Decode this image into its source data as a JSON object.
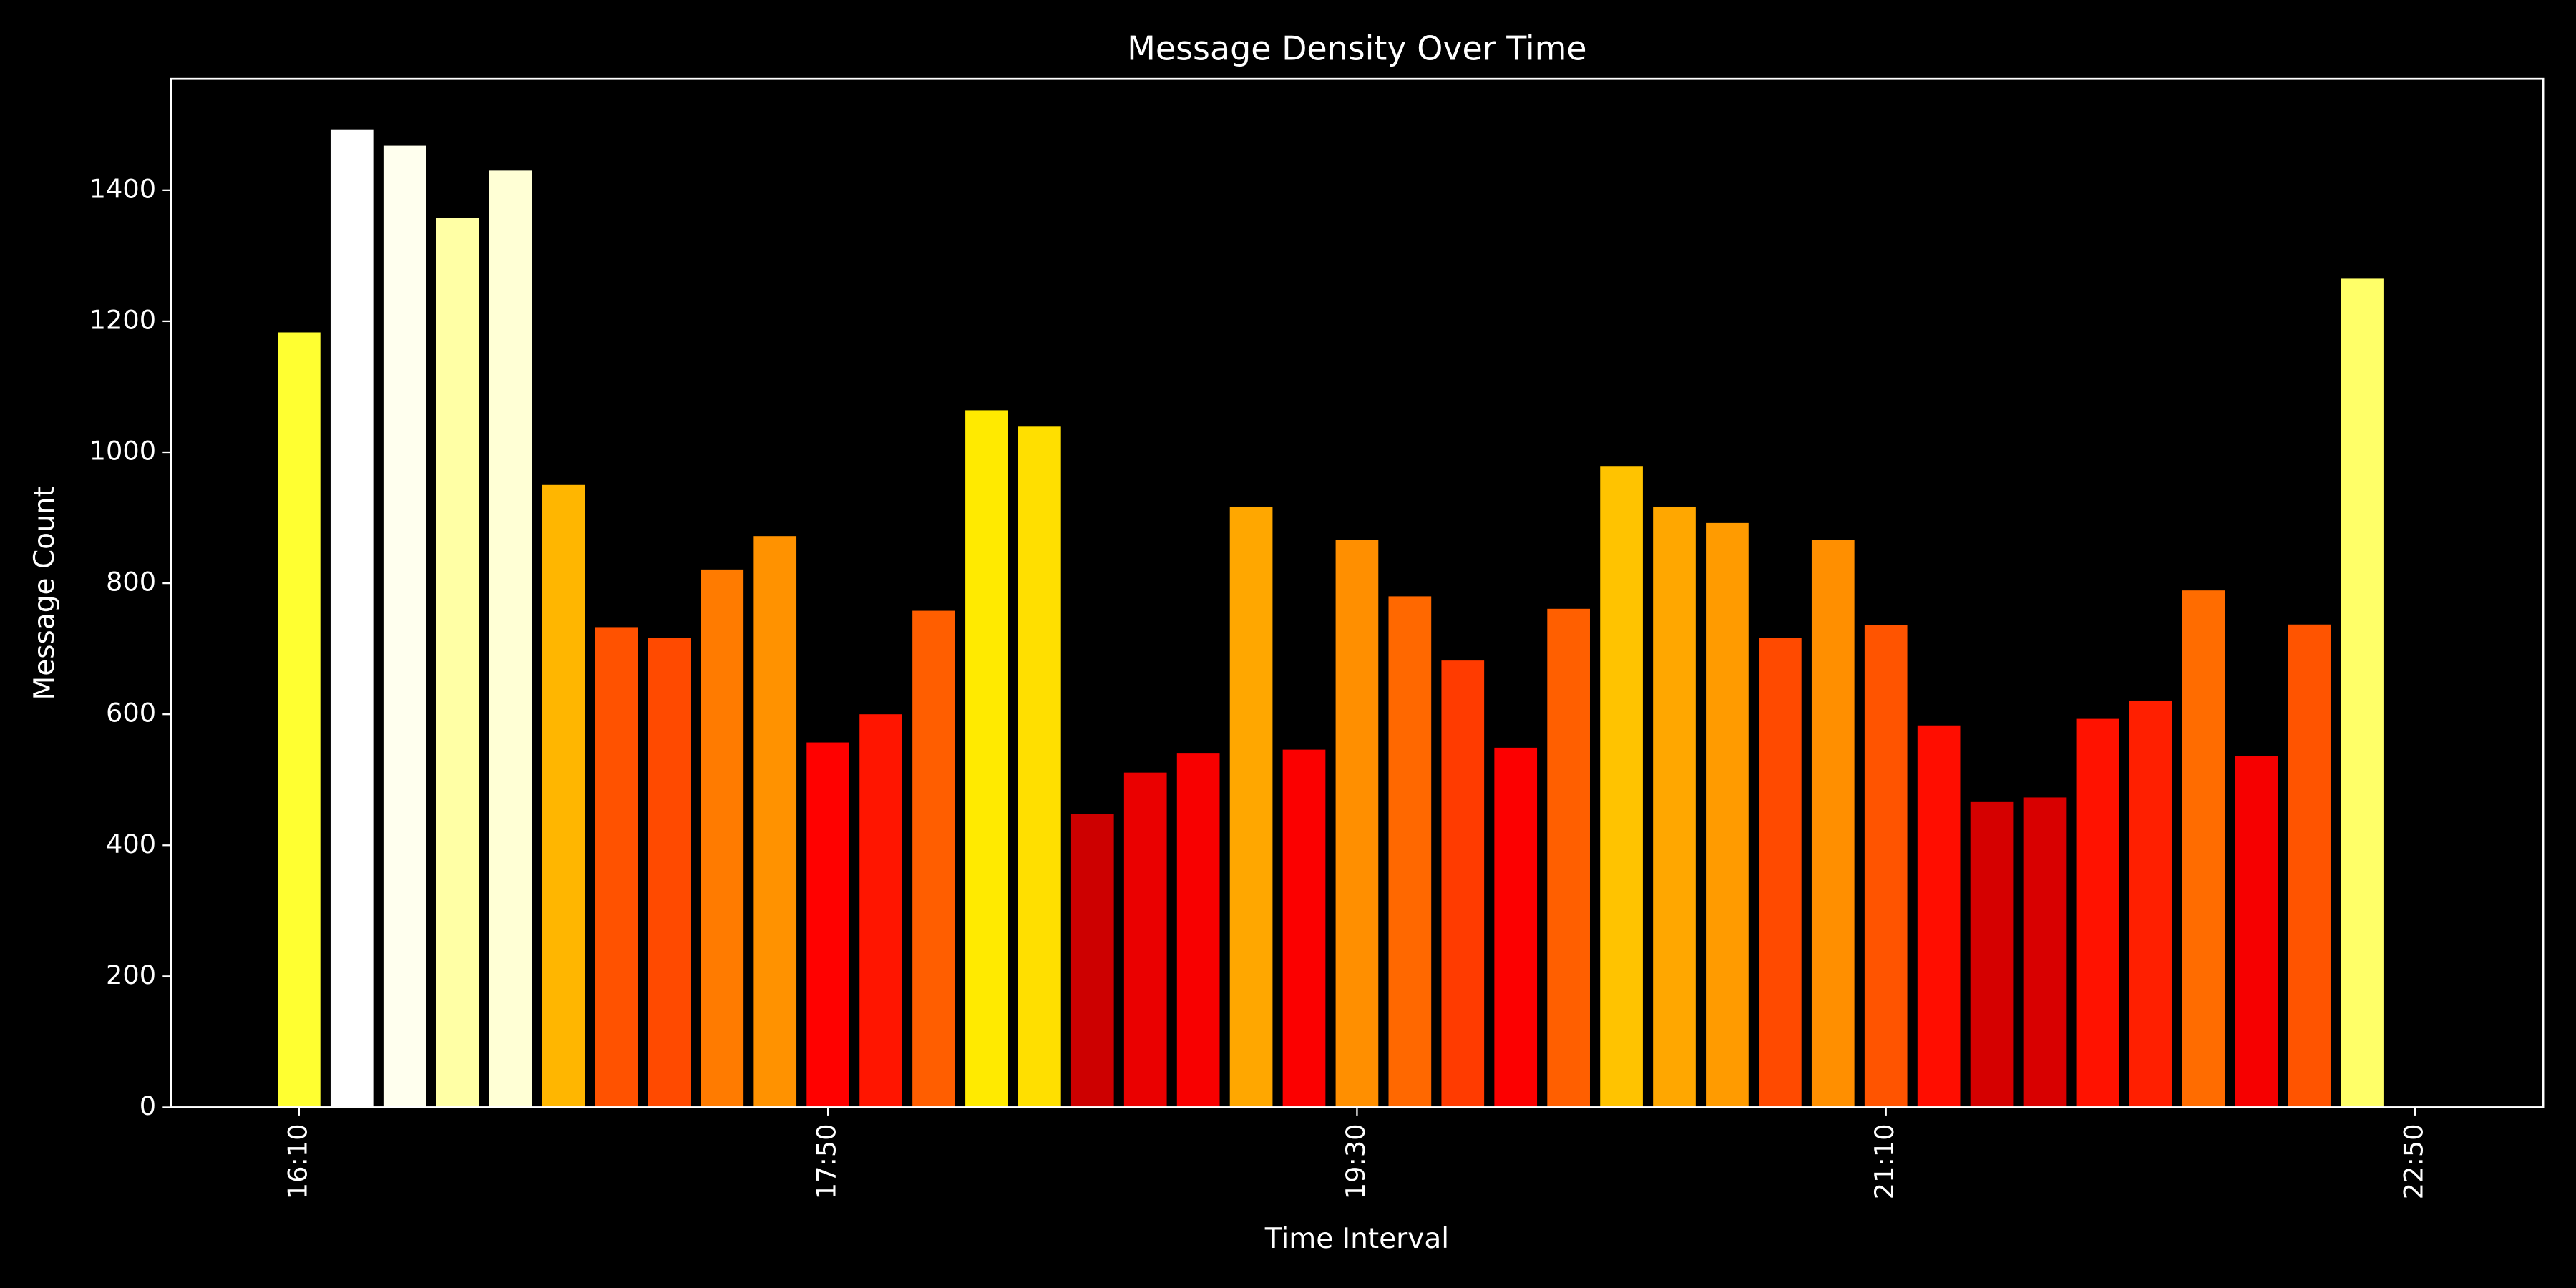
{
  "chart_data": {
    "type": "bar",
    "title": "Message Density Over Time",
    "x_label": "Time Interval",
    "y_label": "Message Count",
    "categories": [
      "16:10",
      null,
      null,
      null,
      null,
      null,
      null,
      null,
      null,
      null,
      "17:50",
      null,
      null,
      null,
      null,
      null,
      null,
      null,
      null,
      null,
      "19:30",
      null,
      null,
      null,
      null,
      null,
      null,
      null,
      null,
      null,
      "21:10",
      null,
      null,
      null,
      null,
      null,
      null,
      null,
      null,
      null,
      "22:50"
    ],
    "values": [
      1183,
      1493,
      1468,
      1358,
      1430,
      950,
      733,
      716,
      821,
      872,
      557,
      600,
      758,
      1064,
      1039,
      448,
      511,
      540,
      917,
      546,
      866,
      780,
      682,
      549,
      761,
      979,
      917,
      892,
      716,
      866,
      736,
      583,
      466,
      473,
      593,
      621,
      789,
      536,
      737,
      1265,
      15
    ],
    "colormap": "hot",
    "background": "#000000",
    "foreground": "#ffffff",
    "ylim": [
      0,
      1570
    ],
    "yticks": [
      0,
      200,
      400,
      600,
      800,
      1000,
      1200,
      1400
    ]
  }
}
